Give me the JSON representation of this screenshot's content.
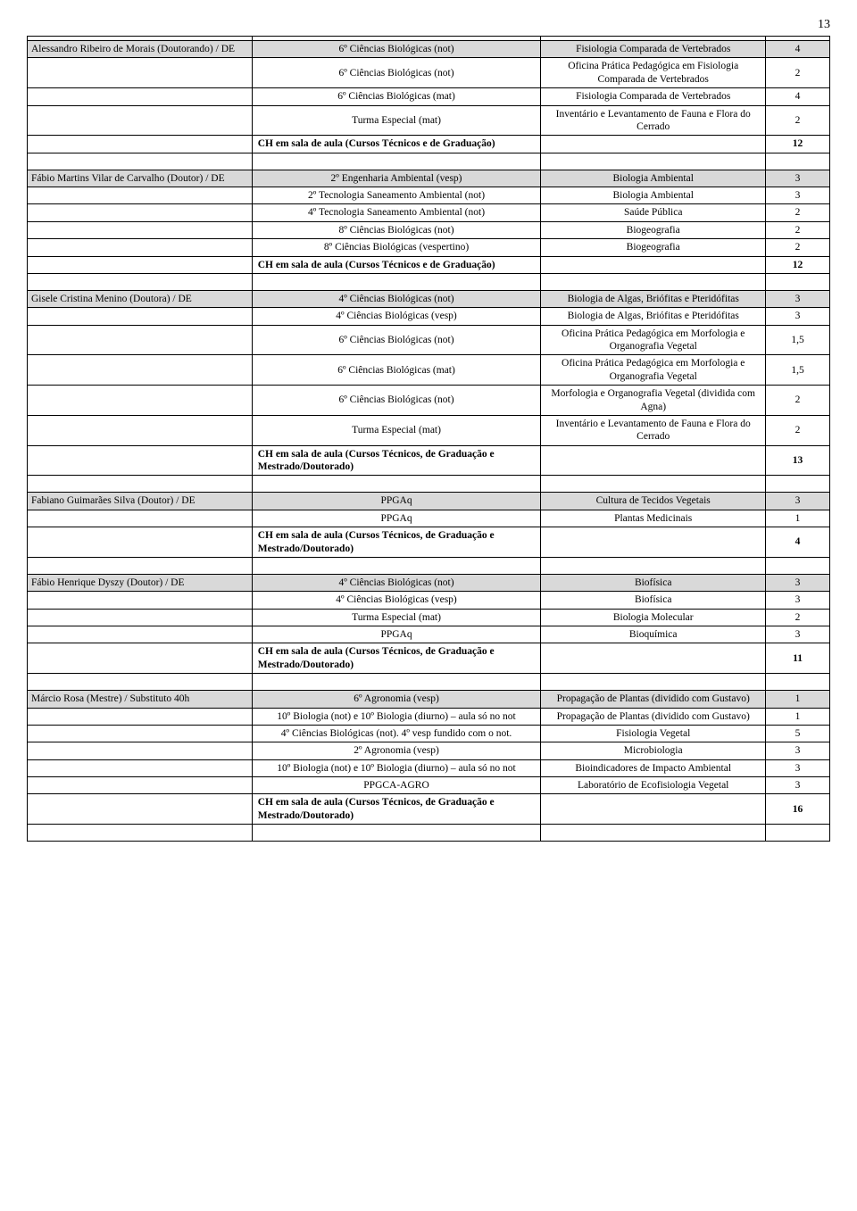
{
  "page_number": "13",
  "sections": [
    {
      "instructor": "Alessandro Ribeiro de Morais (Doutorando) / DE",
      "shaded_first": true,
      "rows": [
        {
          "c2": "6º Ciências Biológicas (not)",
          "c3": "Fisiologia Comparada de Vertebrados",
          "c4": "4",
          "shaded": true
        },
        {
          "c2": "6º Ciências Biológicas (not)",
          "c3": "Oficina Prática Pedagógica em Fisiologia Comparada de Vertebrados",
          "c4": "2"
        },
        {
          "c2": "6º Ciências Biológicas (mat)",
          "c3": "Fisiologia Comparada de Vertebrados",
          "c4": "4"
        },
        {
          "c2": "Turma Especial (mat)",
          "c3": "Inventário e Levantamento de Fauna e Flora do Cerrado",
          "c4": "2"
        }
      ],
      "summary_label": "CH em sala de aula (Cursos Técnicos e de Graduação)",
      "summary_value": "12"
    },
    {
      "instructor": "Fábio Martins Vilar de Carvalho (Doutor) / DE",
      "shaded_first": true,
      "rows": [
        {
          "c2": "2º Engenharia Ambiental (vesp)",
          "c3": "Biologia Ambiental",
          "c4": "3",
          "shaded": true
        },
        {
          "c2": "2º Tecnologia Saneamento Ambiental (not)",
          "c3": "Biologia Ambiental",
          "c4": "3"
        },
        {
          "c2": "4º Tecnologia Saneamento Ambiental (not)",
          "c3": "Saúde Pública",
          "c4": "2"
        },
        {
          "c2": "8º Ciências Biológicas (not)",
          "c3": "Biogeografia",
          "c4": "2"
        },
        {
          "c2": "8º Ciências Biológicas (vespertino)",
          "c3": "Biogeografia",
          "c4": "2"
        }
      ],
      "summary_label": "CH em sala de aula (Cursos Técnicos e de Graduação)",
      "summary_value": "12"
    },
    {
      "instructor": "Gisele Cristina Menino (Doutora) / DE",
      "shaded_first": true,
      "rows": [
        {
          "c2": "4º Ciências Biológicas (not)",
          "c3": "Biologia de Algas, Briófitas e Pteridófitas",
          "c4": "3",
          "shaded": true
        },
        {
          "c2": "4º Ciências Biológicas (vesp)",
          "c3": "Biologia de Algas, Briófitas e Pteridófitas",
          "c4": "3"
        },
        {
          "c2": "6º Ciências Biológicas (not)",
          "c3": "Oficina Prática Pedagógica em Morfologia e Organografia Vegetal",
          "c4": "1,5"
        },
        {
          "c2": "6º Ciências Biológicas (mat)",
          "c3": "Oficina Prática Pedagógica em Morfologia e Organografia Vegetal",
          "c4": "1,5"
        },
        {
          "c2": "6º Ciências Biológicas (not)",
          "c3": "Morfologia e Organografia Vegetal (dividida com Agna)",
          "c4": "2"
        },
        {
          "c2": "Turma Especial (mat)",
          "c3": "Inventário e Levantamento de Fauna e Flora do Cerrado",
          "c4": "2"
        }
      ],
      "summary_label": "CH em sala de aula (Cursos Técnicos, de Graduação e Mestrado/Doutorado)",
      "summary_value": "13"
    },
    {
      "instructor": "Fabiano Guimarães Silva (Doutor) / DE",
      "shaded_first": true,
      "rows": [
        {
          "c2": "PPGAq",
          "c3": "Cultura de Tecidos Vegetais",
          "c4": "3",
          "shaded": true
        },
        {
          "c2": "PPGAq",
          "c3": "Plantas Medicinais",
          "c4": "1"
        }
      ],
      "summary_label": "CH em sala de aula (Cursos Técnicos, de Graduação e Mestrado/Doutorado)",
      "summary_value": "4"
    },
    {
      "instructor": "Fábio Henrique Dyszy (Doutor) / DE",
      "shaded_first": true,
      "rows": [
        {
          "c2": "4º Ciências Biológicas (not)",
          "c3": "Biofísica",
          "c4": "3",
          "shaded": true
        },
        {
          "c2": "4º Ciências Biológicas (vesp)",
          "c3": "Biofísica",
          "c4": "3"
        },
        {
          "c2": "Turma Especial (mat)",
          "c3": "Biologia Molecular",
          "c4": "2"
        },
        {
          "c2": "PPGAq",
          "c3": "Bioquímica",
          "c4": "3"
        }
      ],
      "summary_label": "CH em sala de aula (Cursos Técnicos, de Graduação e Mestrado/Doutorado)",
      "summary_value": "11"
    },
    {
      "instructor": "Márcio Rosa (Mestre) / Substituto 40h",
      "shaded_first": true,
      "rows": [
        {
          "c2": "6º Agronomia (vesp)",
          "c3": "Propagação de Plantas (dividido com Gustavo)",
          "c4": "1",
          "shaded": true
        },
        {
          "c2": "10º Biologia (not) e 10º Biologia (diurno) – aula só no not",
          "c3": "Propagação de Plantas (dividido com Gustavo)",
          "c4": "1"
        },
        {
          "c2": "4º Ciências Biológicas (not). 4º vesp fundido com o not.",
          "c3": "Fisiologia Vegetal",
          "c4": "5"
        },
        {
          "c2": "2º Agronomia (vesp)",
          "c3": "Microbiologia",
          "c4": "3"
        },
        {
          "c2": "10º Biologia (not) e 10º Biologia (diurno) – aula só no not",
          "c3": "Bioindicadores de Impacto Ambiental",
          "c4": "3"
        },
        {
          "c2": "PPGCA-AGRO",
          "c3": "Laboratório de Ecofisiologia Vegetal",
          "c4": "3"
        }
      ],
      "summary_label": "CH em sala de aula (Cursos Técnicos, de Graduação e Mestrado/Doutorado)",
      "summary_value": "16"
    }
  ]
}
